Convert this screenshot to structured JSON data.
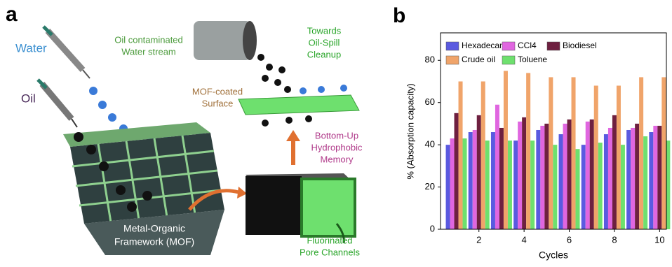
{
  "panel_a": {
    "label": "a",
    "water": "Water",
    "oil": "Oil",
    "stream": [
      "Oil contaminated",
      "Water stream"
    ],
    "towards": [
      "Towards",
      "Oil-Spill",
      "Cleanup"
    ],
    "surface": [
      "MOF-coated",
      "Surface"
    ],
    "memory": [
      "Bottom-Up",
      "Hydrophobic",
      "Memory"
    ],
    "mof": [
      "Metal-Organic",
      "Framework (MOF)"
    ],
    "channels": [
      "Fluorinated",
      "Pore Channels"
    ]
  },
  "chart_data": {
    "type": "bar",
    "panel_label": "b",
    "x_label": "Cycles",
    "y_label": "% (Absorption capacity)",
    "x": [
      1,
      2,
      3,
      4,
      5,
      6,
      7,
      8,
      9,
      10
    ],
    "xlim": [
      0.3,
      10.3
    ],
    "xticks": [
      2,
      4,
      6,
      8,
      10
    ],
    "ylim": [
      0,
      93
    ],
    "yticks": [
      0,
      20,
      40,
      60,
      80
    ],
    "series": [
      {
        "name": "Hexadecane",
        "color": "#5a5ae0",
        "values": [
          40,
          46,
          46,
          42,
          47,
          45,
          40,
          45,
          47,
          46
        ]
      },
      {
        "name": "CCl4",
        "color": "#e066e0",
        "values": [
          43,
          47,
          59,
          51,
          49,
          50,
          51,
          48,
          48,
          49
        ]
      },
      {
        "name": "Biodiesel",
        "color": "#6e2040",
        "values": [
          55,
          54,
          48,
          53,
          50,
          52,
          52,
          54,
          50,
          49
        ]
      },
      {
        "name": "Crude oil",
        "color": "#f0a46a",
        "values": [
          70,
          70,
          75,
          74,
          72,
          72,
          68,
          68,
          72,
          72
        ]
      },
      {
        "name": "Toluene",
        "color": "#6ee06e",
        "values": [
          43,
          42,
          42,
          42,
          40,
          38,
          41,
          40,
          44,
          42
        ]
      }
    ]
  }
}
